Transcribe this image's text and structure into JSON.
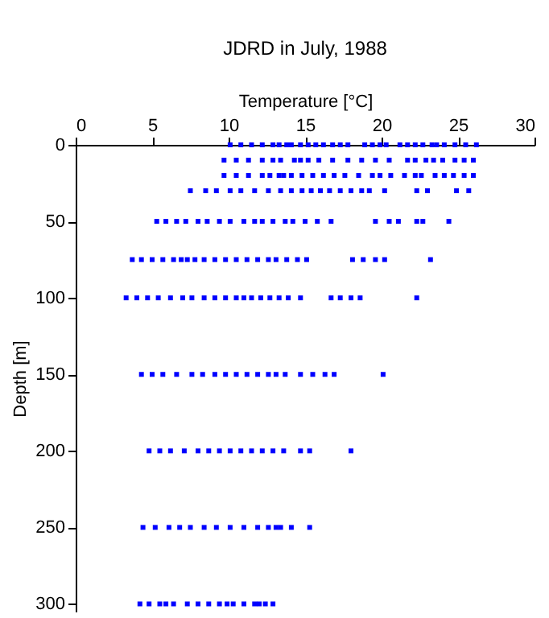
{
  "chart_data": {
    "type": "scatter",
    "title": "JDRD in July, 1988",
    "xlabel": "Temperature [°C]",
    "ylabel": "Depth [m]",
    "xlim": [
      0,
      30
    ],
    "xticks": [
      0,
      5,
      10,
      15,
      20,
      25,
      30
    ],
    "ylim": [
      305,
      0
    ],
    "yticks": [
      0,
      50,
      100,
      150,
      200,
      250,
      300
    ],
    "grid": false,
    "marker": "square",
    "series": [
      {
        "color": "#0000ff",
        "x": [
          10.1,
          10.8,
          11.5,
          12.2,
          12.9,
          13.3,
          13.8,
          14.1,
          14.7,
          15.2,
          15.7,
          16.2,
          16.8,
          17.3,
          17.8,
          18.9,
          19.4,
          19.9,
          20.3,
          21.2,
          21.7,
          22.2,
          22.7,
          23.3,
          23.6,
          24.1,
          24.8,
          25.5,
          26.2
        ],
        "values": [
          0,
          0,
          0,
          0,
          0,
          0,
          0,
          0,
          0,
          0,
          0,
          0,
          0,
          0,
          0,
          0,
          0,
          0,
          0,
          0,
          0,
          0,
          0,
          0,
          0,
          0,
          0,
          0,
          0
        ]
      },
      {
        "color": "#0000ff",
        "x": [
          9.7,
          10.5,
          11.3,
          12.2,
          12.9,
          13.4,
          14.3,
          14.7,
          15.2,
          15.9,
          16.8,
          17.8,
          18.7,
          19.6,
          20.5,
          21.7,
          22.2,
          22.9,
          23.4,
          24.0,
          24.8,
          25.4,
          26.0
        ],
        "values": [
          10,
          10,
          10,
          10,
          10,
          10,
          10,
          10,
          10,
          10,
          10,
          10,
          10,
          10,
          10,
          10,
          10,
          10,
          10,
          10,
          10,
          10,
          10
        ]
      },
      {
        "color": "#0000ff",
        "x": [
          9.7,
          10.5,
          11.3,
          12.2,
          12.7,
          13.3,
          13.6,
          14.1,
          14.8,
          15.5,
          16.2,
          16.9,
          17.6,
          18.5,
          19.4,
          19.9,
          20.6,
          21.5,
          22.2,
          22.6,
          23.5,
          24.1,
          24.7,
          25.4,
          26.0
        ],
        "values": [
          20,
          20,
          20,
          20,
          20,
          20,
          20,
          20,
          20,
          20,
          20,
          20,
          20,
          20,
          20,
          20,
          20,
          20,
          20,
          20,
          20,
          20,
          20,
          20,
          20
        ]
      },
      {
        "color": "#0000ff",
        "x": [
          7.5,
          8.5,
          9.2,
          10.1,
          10.8,
          11.7,
          12.6,
          13.4,
          14.1,
          14.8,
          15.4,
          16.0,
          16.6,
          17.3,
          18.0,
          18.7,
          19.2,
          20.2,
          22.3,
          23.0,
          24.9,
          25.7
        ],
        "values": [
          30,
          30,
          30,
          30,
          30,
          30,
          30,
          30,
          30,
          30,
          30,
          30,
          30,
          30,
          30,
          30,
          30,
          30,
          30,
          30,
          30,
          30
        ]
      },
      {
        "color": "#0000ff",
        "x": [
          5.3,
          5.9,
          6.6,
          7.2,
          8.0,
          8.6,
          9.4,
          10.1,
          11.0,
          11.7,
          12.2,
          12.9,
          13.7,
          14.2,
          15.0,
          15.8,
          16.7,
          19.6,
          20.5,
          21.1,
          22.3,
          22.7,
          24.4
        ],
        "values": [
          50,
          50,
          50,
          50,
          50,
          50,
          50,
          50,
          50,
          50,
          50,
          50,
          50,
          50,
          50,
          50,
          50,
          50,
          50,
          50,
          50,
          50,
          50
        ]
      },
      {
        "color": "#0000ff",
        "x": [
          3.7,
          4.3,
          5.0,
          5.7,
          6.4,
          6.9,
          7.3,
          7.8,
          8.4,
          9.1,
          9.8,
          10.5,
          11.2,
          11.9,
          12.6,
          13.1,
          13.8,
          14.5,
          15.1,
          18.1,
          18.8,
          19.6,
          20.2,
          23.2
        ],
        "values": [
          75,
          75,
          75,
          75,
          75,
          75,
          75,
          75,
          75,
          75,
          75,
          75,
          75,
          75,
          75,
          75,
          75,
          75,
          75,
          75,
          75,
          75,
          75,
          75
        ]
      },
      {
        "color": "#0000ff",
        "x": [
          3.3,
          4.0,
          4.7,
          5.4,
          6.2,
          7.0,
          7.6,
          8.4,
          9.1,
          9.8,
          10.5,
          11.0,
          11.5,
          12.1,
          12.7,
          13.3,
          13.9,
          14.7,
          16.7,
          17.3,
          18.0,
          18.6,
          22.3
        ],
        "values": [
          100,
          100,
          100,
          100,
          100,
          100,
          100,
          100,
          100,
          100,
          100,
          100,
          100,
          100,
          100,
          100,
          100,
          100,
          100,
          100,
          100,
          100,
          100
        ]
      },
      {
        "color": "#0000ff",
        "x": [
          4.3,
          5.0,
          5.7,
          6.6,
          7.6,
          8.3,
          9.1,
          9.8,
          10.5,
          11.2,
          11.9,
          12.6,
          13.1,
          13.7,
          14.7,
          15.5,
          16.3,
          16.9,
          20.1
        ],
        "values": [
          150,
          150,
          150,
          150,
          150,
          150,
          150,
          150,
          150,
          150,
          150,
          150,
          150,
          150,
          150,
          150,
          150,
          150,
          150
        ]
      },
      {
        "color": "#0000ff",
        "x": [
          4.8,
          5.5,
          6.2,
          7.1,
          8.0,
          8.7,
          9.4,
          10.1,
          10.8,
          11.5,
          12.2,
          12.9,
          13.6,
          14.7,
          15.3,
          18.0
        ],
        "values": [
          200,
          200,
          200,
          200,
          200,
          200,
          200,
          200,
          200,
          200,
          200,
          200,
          200,
          200,
          200,
          200
        ]
      },
      {
        "color": "#0000ff",
        "x": [
          4.4,
          5.2,
          6.1,
          6.8,
          7.5,
          8.4,
          9.2,
          10.1,
          11.0,
          11.9,
          12.6,
          13.1,
          13.4,
          14.1,
          15.3
        ],
        "values": [
          250,
          250,
          250,
          250,
          250,
          250,
          250,
          250,
          250,
          250,
          250,
          250,
          250,
          250,
          250
        ]
      },
      {
        "color": "#0000ff",
        "x": [
          4.2,
          4.8,
          5.5,
          5.9,
          6.4,
          7.3,
          8.0,
          8.7,
          9.4,
          9.9,
          10.3,
          11.0,
          11.7,
          12.0,
          12.4,
          12.9
        ],
        "values": [
          300,
          300,
          300,
          300,
          300,
          300,
          300,
          300,
          300,
          300,
          300,
          300,
          300,
          300,
          300,
          300
        ]
      }
    ]
  }
}
